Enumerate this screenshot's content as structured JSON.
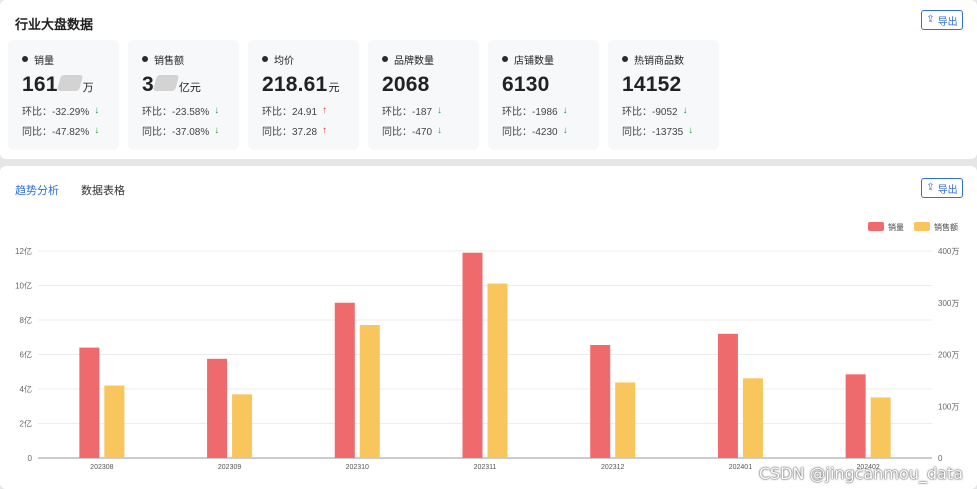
{
  "overview": {
    "title": "行业大盘数据",
    "export_label": "导出",
    "export_icon": "upload-icon",
    "metrics": [
      {
        "label": "销量",
        "value_a": "161",
        "value_b": "",
        "unit": "万",
        "mom": "环比：-32.29%",
        "mom_dir": "down",
        "yoy": "同比：-47.82%",
        "yoy_dir": "down",
        "obscured": true
      },
      {
        "label": "销售额",
        "value_a": "3",
        "value_b": "",
        "unit": "亿元",
        "mom": "环比：-23.58%",
        "mom_dir": "down",
        "yoy": "同比：-37.08%",
        "yoy_dir": "down",
        "obscured": true
      },
      {
        "label": "均价",
        "value_a": "218.61",
        "value_b": "",
        "unit": "元",
        "mom": "环比：24.91",
        "mom_dir": "up",
        "yoy": "同比：37.28",
        "yoy_dir": "up",
        "obscured": false
      },
      {
        "label": "品牌数量",
        "value_a": "2068",
        "value_b": "",
        "unit": "",
        "mom": "环比：-187",
        "mom_dir": "down",
        "yoy": "同比：-470",
        "yoy_dir": "down",
        "obscured": false
      },
      {
        "label": "店铺数量",
        "value_a": "6130",
        "value_b": "",
        "unit": "",
        "mom": "环比：-1986",
        "mom_dir": "down",
        "yoy": "同比：-4230",
        "yoy_dir": "down",
        "obscured": false
      },
      {
        "label": "热销商品数",
        "value_a": "14152",
        "value_b": "",
        "unit": "",
        "mom": "环比：-9052",
        "mom_dir": "down",
        "yoy": "同比：-13735",
        "yoy_dir": "down",
        "obscured": false
      }
    ]
  },
  "trend": {
    "tabs": [
      {
        "label": "趋势分析",
        "active": true
      },
      {
        "label": "数据表格",
        "active": false
      }
    ],
    "export_label": "导出",
    "watermark": "CSDN @jingcanmou_data"
  },
  "chart_data": {
    "type": "bar",
    "categories": [
      "202308",
      "202309",
      "202310",
      "202311",
      "202312",
      "202401",
      "202402"
    ],
    "series": [
      {
        "name": "销量",
        "color": "#ef6a6c",
        "axis": "left",
        "values": [
          6.4,
          5.75,
          9.0,
          11.9,
          6.55,
          7.2,
          4.85
        ]
      },
      {
        "name": "销售额",
        "color": "#f8c65c",
        "axis": "right",
        "values": [
          140,
          123,
          257,
          337,
          146,
          154,
          117
        ]
      }
    ],
    "left_axis": {
      "ticks": [
        "0",
        "2亿",
        "4亿",
        "6亿",
        "8亿",
        "10亿",
        "12亿"
      ],
      "max": 12
    },
    "right_axis": {
      "ticks": [
        "0",
        "100万",
        "200万",
        "300万",
        "400万"
      ],
      "max": 400
    },
    "grid": true,
    "legend_position": "top-right"
  }
}
